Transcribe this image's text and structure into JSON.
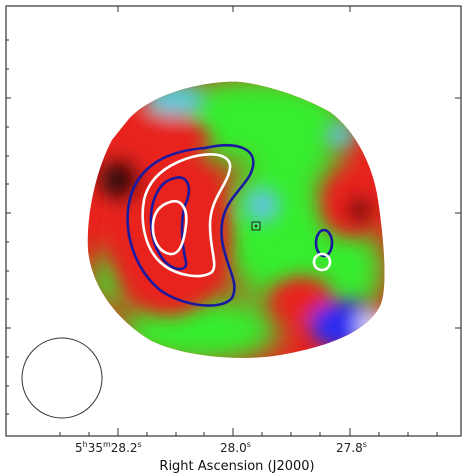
{
  "figure": {
    "x_axis_label": "Right Ascension (J2000)",
    "x_ticks": [
      {
        "h": "5",
        "m": "35",
        "s": "28.2",
        "hu": "h",
        "mu": "m",
        "su": "s"
      },
      {
        "h": "",
        "m": "",
        "s": "28.0",
        "hu": "",
        "mu": "",
        "su": "s"
      },
      {
        "h": "",
        "m": "",
        "s": "27.8",
        "hu": "",
        "mu": "",
        "su": "s"
      }
    ],
    "colors": {
      "frame": "#333333",
      "contour_blue": "#1a1aa0",
      "contour_white": "#ffffff",
      "map_red": "#e8231e",
      "map_green": "#36ee2f",
      "map_cyan": "#5fc7d8",
      "map_blue": "#2c2cf0"
    },
    "markers": {
      "center_marker": "square-dot",
      "beam": "circle"
    }
  }
}
